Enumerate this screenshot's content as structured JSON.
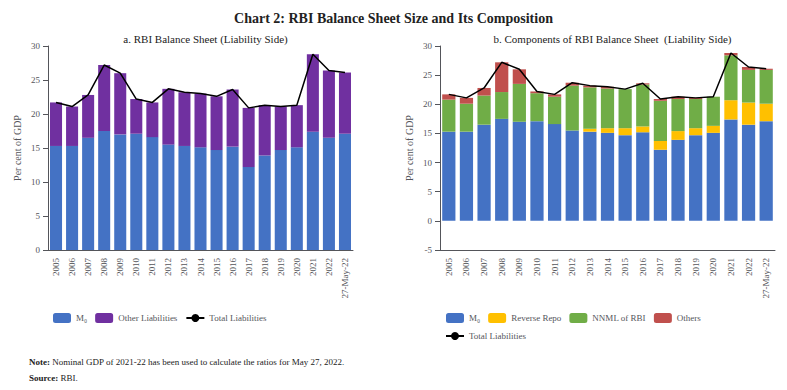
{
  "title": "Chart 2: RBI Balance Sheet Size and Its Composition",
  "annotations": [
    "Note: Nominal GDP of 2021-22 has been used to calculate the ratios for May 27, 2022.",
    "Source: RBI."
  ],
  "chart_data": [
    {
      "type": "bar",
      "title": "a. RBI Balance Sheet (Liability Side)",
      "ylabel": "Per cent of GDP",
      "categories": [
        "2005",
        "2006",
        "2007",
        "2008",
        "2009",
        "2010",
        "2011",
        "2012",
        "2013",
        "2014",
        "2015",
        "2016",
        "2017",
        "2018",
        "2019",
        "2020",
        "2021",
        "2022",
        "27-May-22"
      ],
      "stacked": true,
      "grid": false,
      "legend": "bottom",
      "ylim": [
        0,
        30
      ],
      "yticks": [
        0,
        5,
        10,
        15,
        20,
        25,
        30
      ],
      "series": [
        {
          "name": "M₀",
          "type": "bar",
          "color": "#4472C4",
          "values": [
            15.3,
            15.3,
            16.5,
            17.5,
            17.0,
            17.1,
            16.6,
            15.5,
            15.3,
            15.1,
            14.7,
            15.2,
            12.2,
            13.9,
            14.7,
            15.1,
            17.4,
            16.5,
            17.1
          ]
        },
        {
          "name": "Other Liabilities",
          "type": "bar",
          "color": "#7030A0",
          "values": [
            6.4,
            5.8,
            6.3,
            9.7,
            9.0,
            5.1,
            5.1,
            8.2,
            7.9,
            7.9,
            7.9,
            8.4,
            8.7,
            7.4,
            6.4,
            6.2,
            11.4,
            9.9,
            9.0
          ]
        },
        {
          "name": "Total Liabilities",
          "type": "line",
          "color": "#000000",
          "values": [
            21.7,
            21.1,
            22.8,
            27.2,
            26.0,
            22.2,
            21.7,
            23.7,
            23.2,
            23.0,
            22.6,
            23.6,
            20.9,
            21.3,
            21.1,
            21.3,
            28.8,
            26.4,
            26.1
          ]
        }
      ]
    },
    {
      "type": "bar",
      "title": "b. Components of RBI Balance Sheet  (Liability Side)",
      "ylabel": "Per cent of GDP",
      "categories": [
        "2005",
        "2006",
        "2007",
        "2008",
        "2009",
        "2010",
        "2011",
        "2012",
        "2013",
        "2014",
        "2015",
        "2016",
        "2017",
        "2018",
        "2019",
        "2020",
        "2021",
        "2022",
        "27-May-22"
      ],
      "stacked": true,
      "grid": false,
      "legend": "bottom",
      "ylim": [
        -5,
        30
      ],
      "yticks": [
        -5,
        0,
        5,
        10,
        15,
        20,
        25,
        30
      ],
      "series": [
        {
          "name": "M₀",
          "type": "bar",
          "color": "#4472C4",
          "values": [
            15.3,
            15.3,
            16.5,
            17.5,
            17.0,
            17.1,
            16.6,
            15.5,
            15.3,
            15.1,
            14.7,
            15.2,
            12.2,
            13.9,
            14.7,
            15.1,
            17.4,
            16.5,
            17.1
          ]
        },
        {
          "name": "Reverse Repo",
          "type": "bar",
          "color": "#FFC000",
          "values": [
            0.0,
            0.0,
            0.0,
            0.0,
            0.0,
            0.0,
            0.0,
            0.0,
            0.5,
            0.8,
            1.2,
            1.0,
            1.5,
            1.5,
            1.2,
            1.2,
            3.3,
            3.8,
            3.0
          ]
        },
        {
          "name": "NNML of RBI",
          "type": "bar",
          "color": "#70AD47",
          "values": [
            5.5,
            4.8,
            5.0,
            4.6,
            6.5,
            4.8,
            4.7,
            7.7,
            7.1,
            6.8,
            6.7,
            7.2,
            6.9,
            5.5,
            5.0,
            5.0,
            7.7,
            5.6,
            5.8
          ]
        },
        {
          "name": "Others",
          "type": "bar",
          "color": "#C0504D",
          "values": [
            0.9,
            1.0,
            1.3,
            5.1,
            2.5,
            0.3,
            0.4,
            0.5,
            0.3,
            0.3,
            0.0,
            0.2,
            0.3,
            0.4,
            0.2,
            0.0,
            0.4,
            0.5,
            0.2
          ]
        },
        {
          "name": "Total Liabilities",
          "type": "line",
          "color": "#000000",
          "values": [
            21.7,
            21.1,
            22.8,
            27.2,
            26.0,
            22.2,
            21.7,
            23.7,
            23.2,
            23.0,
            22.6,
            23.6,
            20.9,
            21.3,
            21.1,
            21.3,
            28.8,
            26.4,
            26.1
          ]
        }
      ]
    }
  ]
}
